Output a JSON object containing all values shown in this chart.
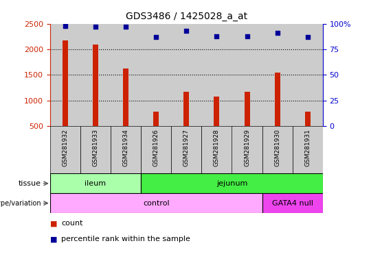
{
  "title": "GDS3486 / 1425028_a_at",
  "samples": [
    "GSM281932",
    "GSM281933",
    "GSM281934",
    "GSM281926",
    "GSM281927",
    "GSM281928",
    "GSM281929",
    "GSM281930",
    "GSM281931"
  ],
  "counts": [
    2175,
    2100,
    1620,
    780,
    1170,
    1080,
    1170,
    1540,
    780
  ],
  "percentiles": [
    98,
    97,
    97,
    87,
    93,
    88,
    88,
    91,
    87
  ],
  "ylim_left": [
    500,
    2500
  ],
  "ylim_right": [
    0,
    100
  ],
  "yticks_left": [
    500,
    1000,
    1500,
    2000,
    2500
  ],
  "yticks_right": [
    0,
    25,
    50,
    75,
    100
  ],
  "tissue_groups": [
    {
      "label": "ileum",
      "start": 0,
      "end": 3,
      "color": "#aaffaa"
    },
    {
      "label": "jejunum",
      "start": 3,
      "end": 9,
      "color": "#44ee44"
    }
  ],
  "genotype_groups": [
    {
      "label": "control",
      "start": 0,
      "end": 7,
      "color": "#ffaaff"
    },
    {
      "label": "GATA4 null",
      "start": 7,
      "end": 9,
      "color": "#ee44ee"
    }
  ],
  "bar_color": "#CC2200",
  "dot_color": "#000099",
  "left_axis_color": "#CC2200",
  "right_axis_color": "#0000CC",
  "sample_bg_color": "#CCCCCC",
  "bar_width": 0.18
}
